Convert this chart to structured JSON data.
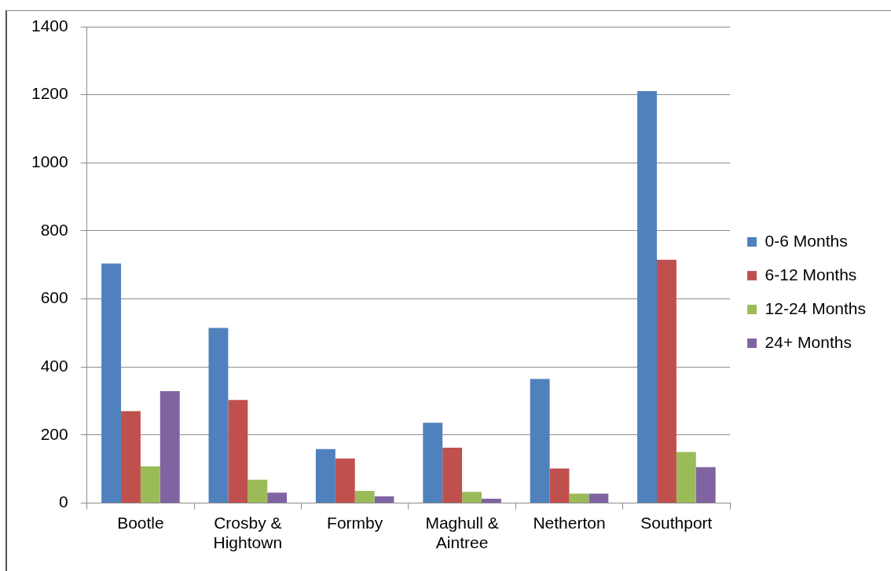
{
  "chart_data": {
    "type": "bar",
    "categories": [
      "Bootle",
      "Crosby & Hightown",
      "Formby",
      "Maghull & Aintree",
      "Netherton",
      "Southport"
    ],
    "series": [
      {
        "name": "0-6 Months",
        "color": "#4f81bd",
        "values": [
          704,
          515,
          159,
          236,
          365,
          1211
        ]
      },
      {
        "name": "6-12 Months",
        "color": "#c0504d",
        "values": [
          270,
          303,
          131,
          163,
          102,
          715
        ]
      },
      {
        "name": "12-24 Months",
        "color": "#9bbb59",
        "values": [
          108,
          69,
          36,
          33,
          28,
          150
        ]
      },
      {
        "name": "24+ Months",
        "color": "#8064a2",
        "values": [
          329,
          31,
          20,
          13,
          28,
          106
        ]
      }
    ],
    "ylim": [
      0,
      1400
    ],
    "yticks": [
      0,
      200,
      400,
      600,
      800,
      1000,
      1200,
      1400
    ],
    "grid": "y",
    "legend": "right"
  }
}
